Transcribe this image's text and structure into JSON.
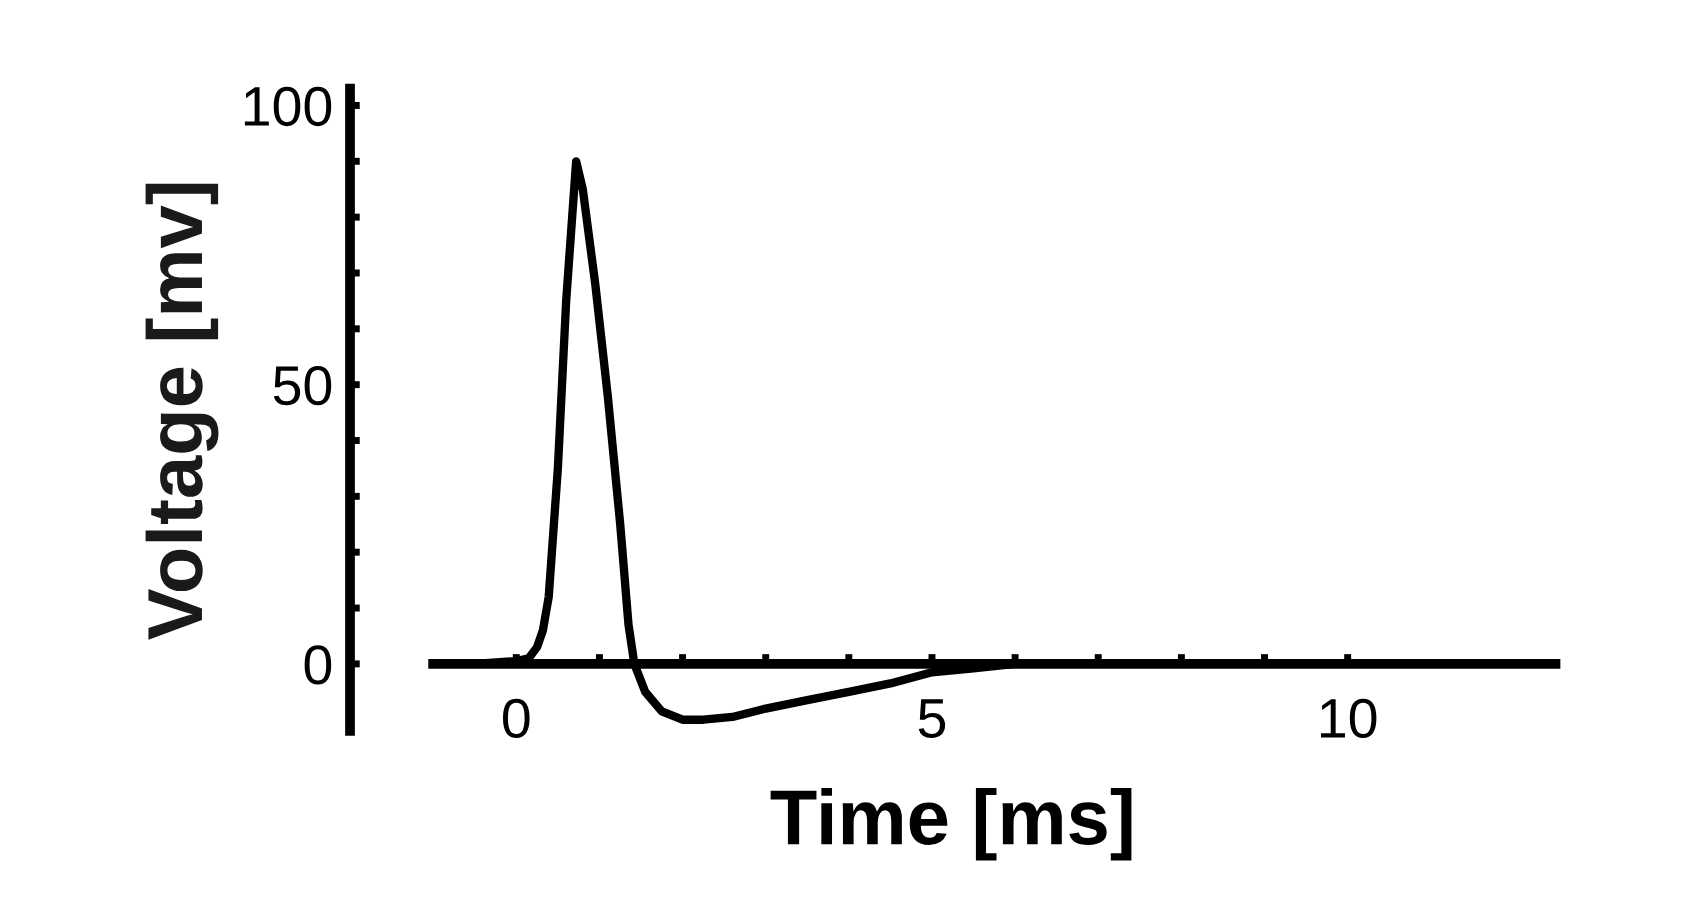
{
  "chart_data": {
    "type": "line",
    "xlabel": "Time [ms]",
    "ylabel": "Voltage [mv]",
    "series": [
      {
        "color": "#000000",
        "x": [
          -1,
          -0.5,
          0,
          0.15,
          0.25,
          0.32,
          0.39,
          0.5,
          0.6,
          0.72,
          0.8,
          0.95,
          1.1,
          1.25,
          1.35,
          1.42,
          1.55,
          1.75,
          2.0,
          2.25,
          2.6,
          3.0,
          3.5,
          4.0,
          4.5,
          5.0,
          5.5,
          6.0,
          7,
          8,
          9,
          10,
          11,
          12.5
        ],
        "values": [
          0,
          0,
          0.5,
          1,
          3,
          6,
          12,
          35,
          65,
          90,
          85,
          68,
          48,
          25,
          7,
          0,
          -5,
          -8.5,
          -10,
          -10,
          -9.5,
          -8,
          -6.5,
          -5,
          -3.5,
          -1.5,
          -0.8,
          0,
          0,
          0,
          0,
          0,
          0,
          0
        ]
      }
    ],
    "xlim": [
      -2,
      12.5
    ],
    "ylim": [
      -12,
      103
    ],
    "xticks": [
      0,
      {
        "value": 1,
        "label": null
      },
      {
        "value": 2,
        "label": null
      },
      {
        "value": 3,
        "label": null
      },
      {
        "value": 4,
        "label": null
      },
      5,
      {
        "value": 6,
        "label": null
      },
      {
        "value": 7,
        "label": null
      },
      {
        "value": 8,
        "label": null
      },
      {
        "value": 9,
        "label": null
      },
      10
    ],
    "yticks": [
      0,
      {
        "value": 10,
        "label": null
      },
      {
        "value": 20,
        "label": null
      },
      {
        "value": 30,
        "label": null
      },
      {
        "value": 40,
        "label": null
      },
      50,
      {
        "value": 60,
        "label": null
      },
      {
        "value": 70,
        "label": null
      },
      {
        "value": 80,
        "label": null
      },
      {
        "value": 90,
        "label": null
      },
      100
    ],
    "grid": false,
    "legend": false,
    "marker": "none",
    "line_style": "solid"
  }
}
